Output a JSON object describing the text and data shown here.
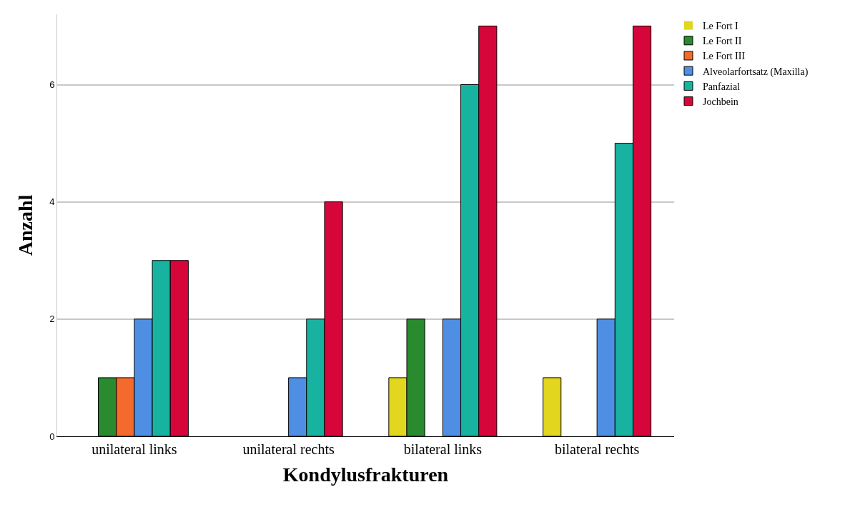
{
  "chart_data": {
    "type": "bar",
    "xlabel": "Kondylusfrakturen",
    "ylabel": "Anzahl",
    "categories": [
      "unilateral links",
      "unilateral rechts",
      "bilateral links",
      "bilateral rechts"
    ],
    "series": [
      {
        "name": "Le Fort I",
        "color": "#e2d61e",
        "values": [
          0,
          0,
          1,
          1
        ]
      },
      {
        "name": "Le Fort II",
        "color": "#2a8a2e",
        "values": [
          1,
          0,
          2,
          0
        ]
      },
      {
        "name": "Le Fort III",
        "color": "#f26a2c",
        "values": [
          1,
          0,
          0,
          0
        ]
      },
      {
        "name": "Alveolarfortsatz (Maxilla)",
        "color": "#4f8fe3",
        "values": [
          2,
          1,
          2,
          2
        ]
      },
      {
        "name": "Panfazial",
        "color": "#18b3a0",
        "values": [
          3,
          2,
          6,
          5
        ]
      },
      {
        "name": "Jochbein",
        "color": "#d7063a",
        "values": [
          3,
          4,
          7,
          7
        ]
      }
    ],
    "ylim": [
      0,
      7.2
    ],
    "yticks": [
      0,
      2,
      4,
      6
    ],
    "grid": "y",
    "legend": "top right"
  }
}
